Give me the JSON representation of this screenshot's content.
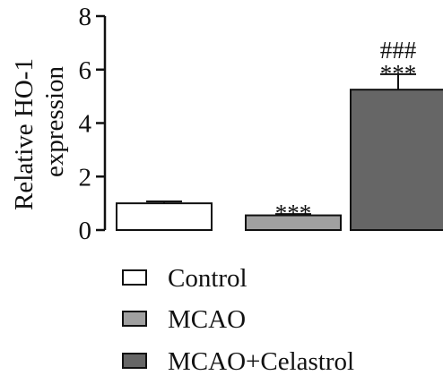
{
  "chart_data": {
    "type": "bar",
    "categories": [
      "Control",
      "MCAO",
      "MCAO+Celastrol"
    ],
    "values": [
      1.0,
      0.55,
      5.25
    ],
    "errors": [
      0.07,
      0.05,
      0.58
    ],
    "ylabel": [
      "Relative HO-1",
      "expression"
    ],
    "ylim": [
      0,
      8
    ],
    "yticks": [
      "0",
      "2",
      "4",
      "6",
      "8"
    ],
    "annotations": [
      [],
      [
        "***"
      ],
      [
        "###",
        "***"
      ]
    ],
    "legend": {
      "position": "bottom-left",
      "entries": [
        "Control",
        "MCAO",
        "MCAO+Celastrol"
      ]
    },
    "colors": [
      "#ffffff",
      "#a0a0a0",
      "#666666"
    ],
    "grid": false
  }
}
